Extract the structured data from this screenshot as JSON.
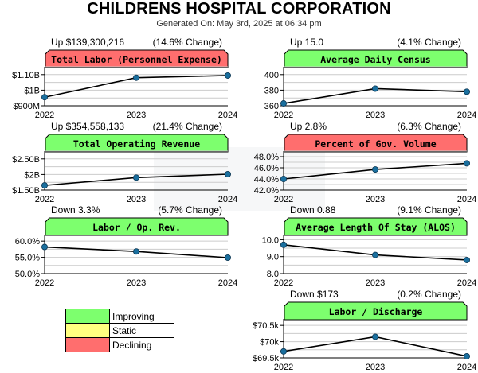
{
  "header": {
    "title": "CHILDRENS HOSPITAL CORPORATION",
    "subtitle": "Generated On: May 3rd, 2025 at 06:34 pm"
  },
  "colors": {
    "improving": "#7dff6e",
    "static": "#ffff80",
    "declining": "#ff6e6e"
  },
  "legend": {
    "items": [
      {
        "label": "Improving",
        "color": "#7dff6e"
      },
      {
        "label": "Static",
        "color": "#ffff80"
      },
      {
        "label": "Declining",
        "color": "#ff6e6e"
      }
    ]
  },
  "chart_data": [
    {
      "type": "line",
      "title": "Total Labor (Personnel Expense)",
      "status": "declining",
      "change_left": "Up $139,300,216",
      "change_right": "(14.6% Change)",
      "categories": [
        "2022",
        "2023",
        "2024"
      ],
      "values": [
        955000000,
        1080000000,
        1094000000
      ],
      "ylim": [
        900000000,
        1150000000
      ],
      "yticks": [
        900000000,
        1000000000,
        1100000000
      ],
      "ytick_labels": [
        "$900M",
        "$1B",
        "$1.10B"
      ],
      "grid": true
    },
    {
      "type": "line",
      "title": "Average Daily Census",
      "status": "improving",
      "change_left": "Up 15.0",
      "change_right": "(4.1% Change)",
      "categories": [
        "2022",
        "2023",
        "2024"
      ],
      "values": [
        363,
        382,
        378
      ],
      "ylim": [
        360,
        410
      ],
      "yticks": [
        360,
        380,
        400
      ],
      "ytick_labels": [
        "360",
        "380",
        "400"
      ],
      "grid": true
    },
    {
      "type": "line",
      "title": "Total Operating Revenue",
      "status": "improving",
      "change_left": "Up $354,558,133",
      "change_right": "(21.4% Change)",
      "categories": [
        "2022",
        "2023",
        "2024"
      ],
      "values": [
        1650000000,
        1900000000,
        2010000000
      ],
      "ylim": [
        1500000000,
        2750000000
      ],
      "yticks": [
        1500000000,
        2000000000,
        2500000000
      ],
      "ytick_labels": [
        "$1.50B",
        "$2B",
        "$2.50B"
      ],
      "grid": true
    },
    {
      "type": "line",
      "title": "Percent of Gov. Volume",
      "status": "declining",
      "change_left": "Up 2.8%",
      "change_right": "(6.3% Change)",
      "categories": [
        "2022",
        "2023",
        "2024"
      ],
      "values": [
        44.0,
        45.7,
        46.8
      ],
      "ylim": [
        42,
        49
      ],
      "yticks": [
        42,
        44,
        46,
        48
      ],
      "ytick_labels": [
        "42.0%",
        "44.0%",
        "46.0%",
        "48.0%"
      ],
      "grid": true
    },
    {
      "type": "line",
      "title": "Labor / Op. Rev.",
      "status": "improving",
      "change_left": "Down 3.3%",
      "change_right": "(5.7% Change)",
      "categories": [
        "2022",
        "2023",
        "2024"
      ],
      "values": [
        58.2,
        56.8,
        54.9
      ],
      "ylim": [
        50,
        62
      ],
      "yticks": [
        50,
        55,
        60
      ],
      "ytick_labels": [
        "50.0%",
        "55.0%",
        "60.0%"
      ],
      "grid": true
    },
    {
      "type": "line",
      "title": "Average Length Of Stay (ALOS)",
      "status": "improving",
      "change_left": "Down 0.88",
      "change_right": "(9.1% Change)",
      "categories": [
        "2022",
        "2023",
        "2024"
      ],
      "values": [
        9.7,
        9.1,
        8.8
      ],
      "ylim": [
        8.0,
        10.3
      ],
      "yticks": [
        8.0,
        9.0,
        10.0
      ],
      "ytick_labels": [
        "8.0",
        "9.0",
        "10.0"
      ],
      "grid": true
    },
    {
      "type": "line",
      "title": "Labor / Discharge",
      "status": "improving",
      "change_left": "Down $173",
      "change_right": "(0.2% Change)",
      "categories": [
        "2022",
        "2023",
        "2024"
      ],
      "values": [
        69700,
        70150,
        69550
      ],
      "ylim": [
        69500,
        70700
      ],
      "yticks": [
        69500,
        70000,
        70500
      ],
      "ytick_labels": [
        "$69.5k",
        "$70k",
        "$70.5k"
      ],
      "grid": true
    }
  ]
}
